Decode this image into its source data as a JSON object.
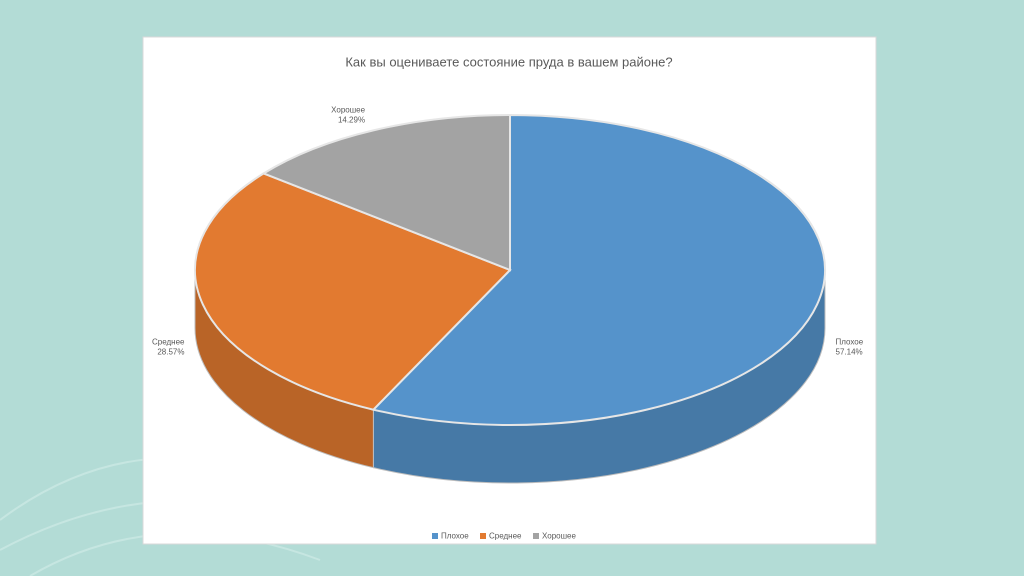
{
  "chart_data": {
    "type": "pie",
    "title": "Как вы оцениваете состояние пруда в вашем районе?",
    "categories": [
      "Плохое",
      "Среднее",
      "Хорошее"
    ],
    "values": [
      57.14,
      28.57,
      14.29
    ],
    "value_labels": [
      "57.14%",
      "28.57%",
      "14.29%"
    ],
    "colors": [
      "#5593cb",
      "#e27a30",
      "#a3a3a3"
    ],
    "legend": "bottom"
  }
}
